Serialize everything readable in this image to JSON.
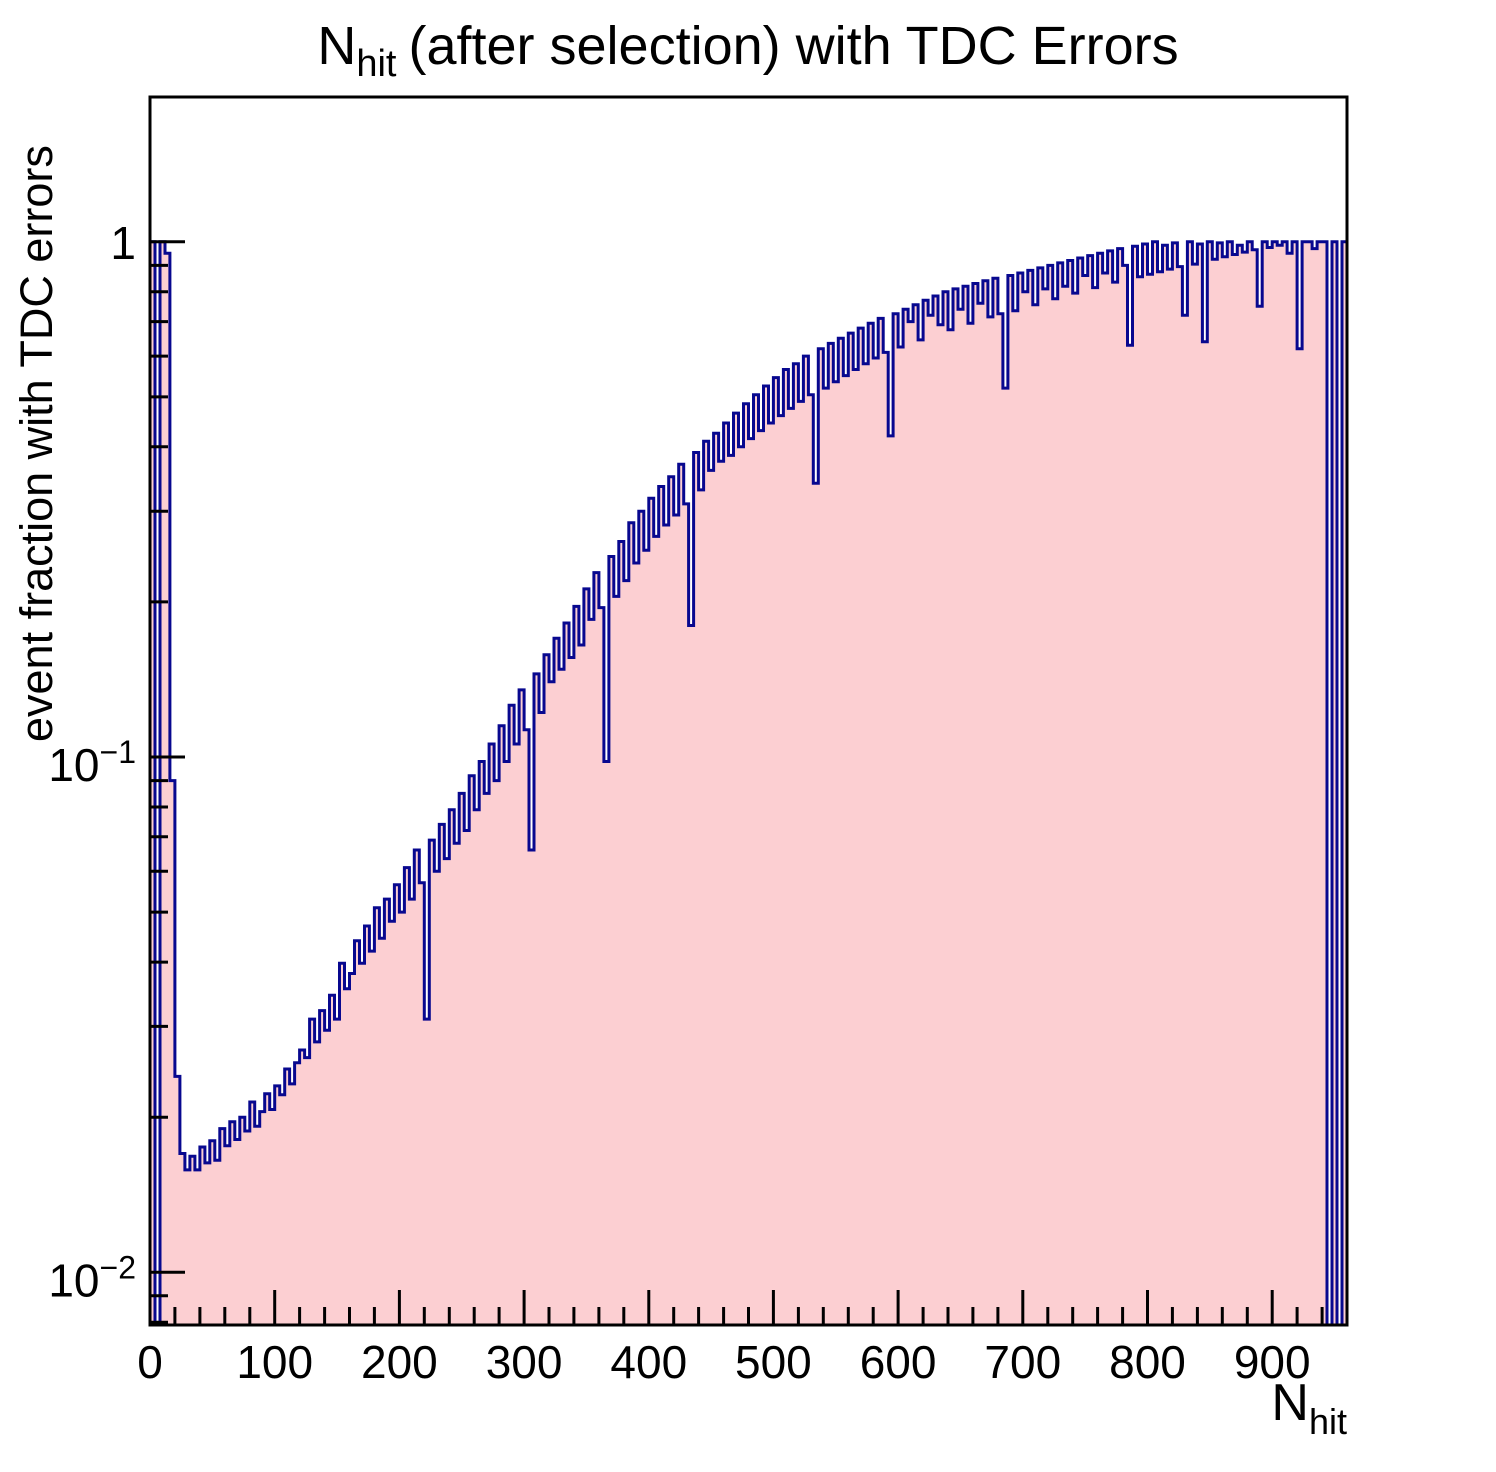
{
  "chart_data": {
    "type": "area",
    "style": "step-histogram",
    "title": {
      "main": "N",
      "sub": "hit",
      "rest": "(after selection) with TDC Errors",
      "full": "N_hit (after selection) with TDC Errors"
    },
    "xlabel": {
      "main": "N",
      "sub": "hit",
      "full": "N_hit"
    },
    "ylabel": "event fraction with TDC errors",
    "x_range": [
      0,
      960
    ],
    "bin_width": 4,
    "y_scale": "log",
    "y_range": [
      0.0079,
      1.91
    ],
    "grid": false,
    "legend": "none",
    "x_ticks_major": [
      0,
      100,
      200,
      300,
      400,
      500,
      600,
      700,
      800,
      900
    ],
    "x_tick_minor_step": 20,
    "y_ticks_major": [
      {
        "value": 1,
        "base": "1",
        "exp": ""
      },
      {
        "value": 0.1,
        "base": "10",
        "exp": "−1"
      },
      {
        "value": 0.01,
        "base": "10",
        "exp": "−2"
      }
    ],
    "y_minor_multiples": [
      2,
      3,
      4,
      5,
      6,
      7,
      8,
      9
    ],
    "colors": {
      "fill": "#fccfd2",
      "line": "#08088f",
      "frame": "#000000",
      "text": "#000000",
      "background": "#ffffff"
    },
    "values": [
      1.0,
      0,
      1.0,
      0.95,
      0.09,
      0.024,
      0.017,
      0.0158,
      0.0168,
      0.0158,
      0.0175,
      0.0163,
      0.018,
      0.0165,
      0.019,
      0.0176,
      0.0196,
      0.0181,
      0.02,
      0.0188,
      0.0214,
      0.0192,
      0.0205,
      0.0222,
      0.0207,
      0.023,
      0.0221,
      0.0248,
      0.0232,
      0.0255,
      0.027,
      0.0261,
      0.031,
      0.028,
      0.0322,
      0.0295,
      0.0345,
      0.031,
      0.0398,
      0.0355,
      0.038,
      0.044,
      0.0398,
      0.047,
      0.042,
      0.051,
      0.0445,
      0.053,
      0.048,
      0.0565,
      0.05,
      0.061,
      0.053,
      0.066,
      0.057,
      0.031,
      0.069,
      0.06,
      0.074,
      0.0635,
      0.079,
      0.068,
      0.085,
      0.072,
      0.092,
      0.079,
      0.098,
      0.085,
      0.106,
      0.09,
      0.115,
      0.098,
      0.126,
      0.106,
      0.135,
      0.113,
      0.066,
      0.145,
      0.122,
      0.158,
      0.14,
      0.17,
      0.148,
      0.182,
      0.156,
      0.196,
      0.165,
      0.212,
      0.185,
      0.228,
      0.195,
      0.098,
      0.245,
      0.205,
      0.262,
      0.22,
      0.285,
      0.238,
      0.3,
      0.252,
      0.318,
      0.268,
      0.335,
      0.282,
      0.35,
      0.295,
      0.37,
      0.31,
      0.18,
      0.39,
      0.33,
      0.41,
      0.36,
      0.425,
      0.375,
      0.445,
      0.385,
      0.465,
      0.4,
      0.485,
      0.415,
      0.505,
      0.43,
      0.525,
      0.445,
      0.545,
      0.46,
      0.565,
      0.475,
      0.58,
      0.49,
      0.6,
      0.505,
      0.34,
      0.62,
      0.52,
      0.635,
      0.535,
      0.65,
      0.55,
      0.665,
      0.565,
      0.68,
      0.58,
      0.695,
      0.595,
      0.71,
      0.61,
      0.42,
      0.725,
      0.625,
      0.74,
      0.7,
      0.755,
      0.645,
      0.77,
      0.72,
      0.785,
      0.69,
      0.8,
      0.675,
      0.81,
      0.74,
      0.82,
      0.695,
      0.83,
      0.76,
      0.84,
      0.715,
      0.85,
      0.725,
      0.52,
      0.86,
      0.735,
      0.87,
      0.8,
      0.88,
      0.755,
      0.89,
      0.81,
      0.9,
      0.775,
      0.91,
      0.82,
      0.92,
      0.795,
      0.93,
      0.86,
      0.94,
      0.815,
      0.95,
      0.87,
      0.96,
      0.835,
      0.97,
      0.9,
      0.63,
      0.98,
      0.855,
      0.99,
      0.865,
      1.0,
      0.875,
      0.985,
      0.885,
      0.995,
      0.895,
      0.72,
      1.0,
      0.905,
      0.99,
      0.64,
      1.0,
      0.925,
      0.995,
      0.935,
      1.0,
      0.945,
      0.985,
      0.955,
      1.0,
      0.965,
      0.75,
      1.0,
      0.975,
      1.0,
      0.985,
      1.0,
      0.95,
      1.0,
      0.62,
      1.0,
      1.0,
      0.97,
      1.0,
      1.0,
      0,
      1.0,
      0,
      1.0
    ]
  }
}
